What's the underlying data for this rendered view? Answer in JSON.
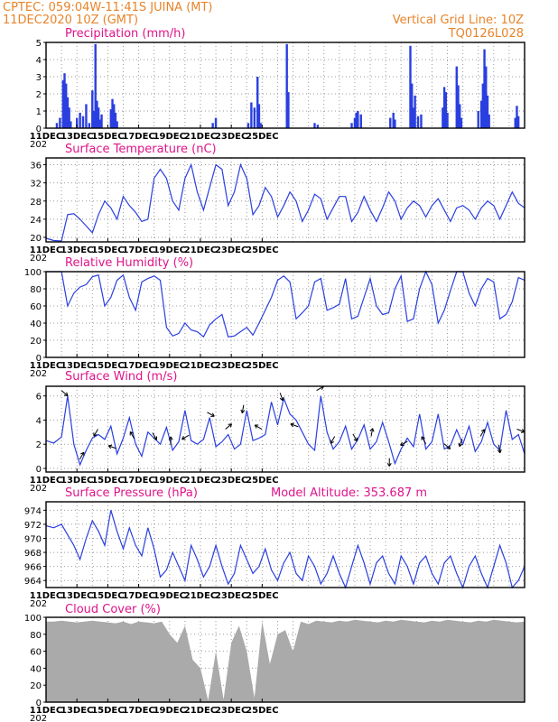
{
  "header": {
    "line1": "CPTEC:   059:04W-11:41S   JUINA (MT)",
    "line2": "11DEC2020 10Z (GMT)",
    "right1": "Vertical Grid Line: 10Z",
    "right2": "TQ0126L028"
  },
  "x_labels": [
    "11DEC",
    "13DEC",
    "15DEC",
    "17DEC",
    "19DEC",
    "21DEC",
    "23DEC",
    "25DEC"
  ],
  "year_stub": "202",
  "colors": {
    "curve": "#2a3fe0",
    "bar": "#2a3fe0",
    "cloud": "#aaaaaa",
    "header": "#e8842a",
    "title": "#e0148a"
  },
  "chart_data": [
    {
      "type": "bar",
      "title": "Precipitation (mm/h)",
      "ylim": [
        0,
        5
      ],
      "yticks": [
        0,
        1,
        2,
        3,
        4,
        5
      ],
      "bars": [
        [
          0.7,
          0.3
        ],
        [
          0.9,
          0.6
        ],
        [
          1.1,
          2.8
        ],
        [
          1.2,
          3.2
        ],
        [
          1.3,
          2.6
        ],
        [
          1.4,
          1.8
        ],
        [
          1.5,
          1.2
        ],
        [
          1.6,
          0.4
        ],
        [
          2.0,
          0.6
        ],
        [
          2.2,
          0.9
        ],
        [
          2.4,
          0.7
        ],
        [
          2.6,
          1.4
        ],
        [
          2.8,
          0.3
        ],
        [
          3.0,
          2.2
        ],
        [
          3.1,
          1.0
        ],
        [
          3.2,
          4.9
        ],
        [
          3.3,
          1.6
        ],
        [
          3.4,
          1.2
        ],
        [
          3.5,
          0.5
        ],
        [
          3.6,
          0.8
        ],
        [
          4.2,
          1.1
        ],
        [
          4.3,
          1.7
        ],
        [
          4.4,
          1.4
        ],
        [
          4.5,
          0.9
        ],
        [
          4.6,
          0.4
        ],
        [
          10.8,
          0.3
        ],
        [
          11.0,
          0.6
        ],
        [
          13.1,
          0.3
        ],
        [
          13.3,
          1.5
        ],
        [
          13.5,
          1.2
        ],
        [
          13.7,
          3.0
        ],
        [
          13.8,
          1.4
        ],
        [
          13.9,
          0.3
        ],
        [
          15.6,
          4.9
        ],
        [
          15.7,
          2.1
        ],
        [
          17.4,
          0.3
        ],
        [
          17.6,
          0.2
        ],
        [
          19.8,
          0.3
        ],
        [
          20.0,
          0.6
        ],
        [
          20.1,
          0.9
        ],
        [
          20.2,
          1.0
        ],
        [
          20.4,
          0.8
        ],
        [
          22.3,
          0.6
        ],
        [
          22.5,
          0.9
        ],
        [
          22.6,
          0.5
        ],
        [
          23.6,
          4.8
        ],
        [
          23.7,
          2.6
        ],
        [
          23.8,
          1.2
        ],
        [
          23.9,
          1.9
        ],
        [
          24.1,
          0.7
        ],
        [
          24.3,
          0.8
        ],
        [
          25.7,
          1.2
        ],
        [
          25.8,
          2.4
        ],
        [
          25.9,
          2.1
        ],
        [
          26.0,
          0.9
        ],
        [
          26.6,
          3.6
        ],
        [
          26.7,
          2.5
        ],
        [
          26.8,
          1.4
        ],
        [
          26.9,
          0.6
        ],
        [
          28.0,
          1.0
        ],
        [
          28.2,
          1.6
        ],
        [
          28.3,
          2.6
        ],
        [
          28.4,
          4.6
        ],
        [
          28.5,
          3.6
        ],
        [
          28.6,
          1.9
        ],
        [
          28.7,
          0.8
        ],
        [
          30.4,
          0.6
        ],
        [
          30.5,
          1.3
        ],
        [
          30.6,
          0.7
        ]
      ]
    },
    {
      "type": "line",
      "title": "Surface Temperature (nC)",
      "ylim": [
        19,
        37.5
      ],
      "yticks": [
        20,
        24,
        28,
        32,
        36
      ],
      "x": [
        0.0,
        0.5,
        1.0,
        1.4,
        1.8,
        2.2,
        2.6,
        3.0,
        3.4,
        3.8,
        4.2,
        4.6,
        5.0,
        5.4,
        5.8,
        6.2,
        6.6,
        7.0,
        7.4,
        7.8,
        8.2,
        8.6,
        9.0,
        9.4,
        9.8,
        10.2,
        10.6,
        11.0,
        11.4,
        11.8,
        12.2,
        12.6,
        13.0,
        13.4,
        13.8,
        14.2,
        14.6,
        15.0,
        15.4,
        15.8,
        16.2,
        16.6,
        17.0,
        17.4,
        17.8,
        18.2,
        18.6,
        19.0,
        19.4,
        19.8,
        20.2,
        20.6,
        21.0,
        21.4,
        21.8,
        22.2,
        22.6,
        23.0,
        23.4,
        23.8,
        24.2,
        24.6,
        25.0,
        25.4,
        25.8,
        26.2,
        26.6,
        27.0,
        27.4,
        27.8,
        28.2,
        28.6,
        29.0,
        29.4,
        29.8,
        30.2,
        30.6,
        31.0
      ],
      "y": [
        19.8,
        19.3,
        19.2,
        25.0,
        25.2,
        24.0,
        22.5,
        21.0,
        25.0,
        28.0,
        26.5,
        24.0,
        29.0,
        27.0,
        25.5,
        23.5,
        24.0,
        33.0,
        35.0,
        33.0,
        28.0,
        26.0,
        33.0,
        36.0,
        30.0,
        26.0,
        31.0,
        36.0,
        35.0,
        27.0,
        30.0,
        36.0,
        33.0,
        25.0,
        27.0,
        31.0,
        29.0,
        24.5,
        27.0,
        30.0,
        28.0,
        23.5,
        26.0,
        29.5,
        28.5,
        24.0,
        26.5,
        29.0,
        29.0,
        23.5,
        25.5,
        29.0,
        26.0,
        23.5,
        26.5,
        30.0,
        28.0,
        24.0,
        26.5,
        28.0,
        27.0,
        24.5,
        27.0,
        28.5,
        26.0,
        23.5,
        26.5,
        27.0,
        26.0,
        24.0,
        26.5,
        28.0,
        27.0,
        24.0,
        27.0,
        30.0,
        27.5,
        26.5
      ]
    },
    {
      "type": "line",
      "title": "Relative Humidity (%)",
      "ylim": [
        0,
        100
      ],
      "yticks": [
        0,
        20,
        40,
        60,
        80,
        100
      ],
      "x": [
        0.0,
        0.5,
        1.0,
        1.4,
        1.8,
        2.2,
        2.6,
        3.0,
        3.4,
        3.8,
        4.2,
        4.6,
        5.0,
        5.4,
        5.8,
        6.2,
        6.6,
        7.0,
        7.4,
        7.8,
        8.2,
        8.6,
        9.0,
        9.4,
        9.8,
        10.2,
        10.6,
        11.0,
        11.4,
        11.8,
        12.2,
        12.6,
        13.0,
        13.4,
        13.8,
        14.2,
        14.6,
        15.0,
        15.4,
        15.8,
        16.2,
        16.6,
        17.0,
        17.4,
        17.8,
        18.2,
        18.6,
        19.0,
        19.4,
        19.8,
        20.2,
        20.6,
        21.0,
        21.4,
        21.8,
        22.2,
        22.6,
        23.0,
        23.4,
        23.8,
        24.2,
        24.6,
        25.0,
        25.4,
        25.8,
        26.2,
        26.6,
        27.0,
        27.4,
        27.8,
        28.2,
        28.6,
        29.0,
        29.4,
        29.8,
        30.2,
        30.6,
        31.0
      ],
      "y": [
        100,
        100,
        100,
        60,
        75,
        82,
        85,
        94,
        96,
        60,
        70,
        90,
        96,
        70,
        55,
        88,
        92,
        95,
        90,
        35,
        25,
        28,
        40,
        32,
        30,
        24,
        38,
        45,
        50,
        24,
        25,
        30,
        35,
        26,
        40,
        55,
        70,
        90,
        95,
        88,
        45,
        52,
        60,
        88,
        92,
        55,
        58,
        62,
        92,
        45,
        48,
        70,
        92,
        60,
        50,
        52,
        80,
        95,
        42,
        45,
        80,
        100,
        85,
        40,
        55,
        78,
        100,
        100,
        75,
        60,
        80,
        92,
        88,
        45,
        50,
        65,
        93,
        90
      ]
    },
    {
      "type": "line",
      "title": "Surface Wind (m/s)",
      "ylim": [
        -0.3,
        6.8
      ],
      "yticks": [
        0,
        2,
        4,
        6
      ],
      "x": [
        0.0,
        0.5,
        1.0,
        1.4,
        1.8,
        2.2,
        2.6,
        3.0,
        3.4,
        3.8,
        4.2,
        4.6,
        5.0,
        5.4,
        5.8,
        6.2,
        6.6,
        7.0,
        7.4,
        7.8,
        8.2,
        8.6,
        9.0,
        9.4,
        9.8,
        10.2,
        10.6,
        11.0,
        11.4,
        11.8,
        12.2,
        12.6,
        13.0,
        13.4,
        13.8,
        14.2,
        14.6,
        15.0,
        15.4,
        15.8,
        16.2,
        16.6,
        17.0,
        17.4,
        17.8,
        18.2,
        18.6,
        19.0,
        19.4,
        19.8,
        20.2,
        20.6,
        21.0,
        21.4,
        21.8,
        22.2,
        22.6,
        23.0,
        23.4,
        23.8,
        24.2,
        24.6,
        25.0,
        25.4,
        25.8,
        26.2,
        26.6,
        27.0,
        27.4,
        27.8,
        28.2,
        28.6,
        29.0,
        29.4,
        29.8,
        30.2,
        30.6,
        31.0
      ],
      "y": [
        2.3,
        2.1,
        2.6,
        6.0,
        2.0,
        0.3,
        1.5,
        2.5,
        2.8,
        2.4,
        3.5,
        1.2,
        2.5,
        4.2,
        2.0,
        1.0,
        3.0,
        2.5,
        2.0,
        3.4,
        1.5,
        2.2,
        4.8,
        2.3,
        2.0,
        2.4,
        4.2,
        1.8,
        2.2,
        2.8,
        1.6,
        2.0,
        4.8,
        2.3,
        2.5,
        2.8,
        5.5,
        3.6,
        5.8,
        4.5,
        4.0,
        3.0,
        2.0,
        1.5,
        6.0,
        3.0,
        1.6,
        2.2,
        3.5,
        1.6,
        2.4,
        3.6,
        1.6,
        2.2,
        3.8,
        2.2,
        0.4,
        1.6,
        2.5,
        1.8,
        4.5,
        1.6,
        2.2,
        4.5,
        1.6,
        1.9,
        3.2,
        2.0,
        3.5,
        1.4,
        2.2,
        3.8,
        2.0,
        1.5,
        4.8,
        2.4,
        2.8,
        1.2
      ]
    },
    {
      "type": "line",
      "title": "Surface Pressure (hPa)",
      "annotation": "Model Altitude: 353.687  m",
      "ylim": [
        963.0,
        975.2
      ],
      "yticks": [
        964,
        966,
        968,
        970,
        972,
        974
      ],
      "x": [
        0.0,
        0.5,
        1.0,
        1.4,
        1.8,
        2.2,
        2.6,
        3.0,
        3.4,
        3.8,
        4.2,
        4.6,
        5.0,
        5.4,
        5.8,
        6.2,
        6.6,
        7.0,
        7.4,
        7.8,
        8.2,
        8.6,
        9.0,
        9.4,
        9.8,
        10.2,
        10.6,
        11.0,
        11.4,
        11.8,
        12.2,
        12.6,
        13.0,
        13.4,
        13.8,
        14.2,
        14.6,
        15.0,
        15.4,
        15.8,
        16.2,
        16.6,
        17.0,
        17.4,
        17.8,
        18.2,
        18.6,
        19.0,
        19.4,
        19.8,
        20.2,
        20.6,
        21.0,
        21.4,
        21.8,
        22.2,
        22.6,
        23.0,
        23.4,
        23.8,
        24.2,
        24.6,
        25.0,
        25.4,
        25.8,
        26.2,
        26.6,
        27.0,
        27.4,
        27.8,
        28.2,
        28.6,
        29.0,
        29.4,
        29.8,
        30.2,
        30.6,
        31.0
      ],
      "y": [
        971.8,
        971.5,
        972.0,
        970.5,
        969.0,
        967.0,
        970.0,
        972.5,
        971.0,
        969.0,
        974.0,
        971.0,
        968.5,
        971.5,
        969.0,
        967.5,
        971.5,
        968.5,
        964.5,
        965.5,
        968.0,
        966.0,
        964.0,
        969.0,
        967.0,
        964.5,
        966.0,
        969.0,
        966.0,
        963.5,
        965.0,
        969.0,
        967.0,
        965.0,
        966.0,
        968.5,
        965.5,
        964.0,
        966.5,
        968.0,
        965.0,
        964.0,
        967.5,
        966.0,
        963.5,
        965.0,
        967.5,
        965.0,
        963.0,
        966.0,
        969.0,
        966.5,
        963.5,
        966.5,
        967.5,
        965.0,
        963.5,
        967.5,
        966.0,
        963.5,
        966.5,
        967.5,
        965.0,
        963.5,
        966.5,
        967.5,
        965.0,
        963.0,
        966.0,
        967.5,
        965.0,
        963.0,
        966.0,
        969.0,
        966.5,
        963.0,
        964.0,
        966.0
      ]
    },
    {
      "type": "area",
      "title": "Cloud Cover (%)",
      "ylim": [
        0,
        100
      ],
      "yticks": [
        0,
        20,
        40,
        60,
        80,
        100
      ],
      "x": [
        0.0,
        0.5,
        1.0,
        1.5,
        2.0,
        2.5,
        3.0,
        3.5,
        4.0,
        4.5,
        5.0,
        5.5,
        6.0,
        6.5,
        7.0,
        7.5,
        8.0,
        8.5,
        9.0,
        9.5,
        10.0,
        10.5,
        11.0,
        11.5,
        12.0,
        12.5,
        13.0,
        13.5,
        14.0,
        14.5,
        15.0,
        15.5,
        16.0,
        16.5,
        17.0,
        17.5,
        18.0,
        18.5,
        19.0,
        19.5,
        20.0,
        20.5,
        21.0,
        21.5,
        22.0,
        22.5,
        23.0,
        23.5,
        24.0,
        24.5,
        25.0,
        25.5,
        26.0,
        26.5,
        27.0,
        27.5,
        28.0,
        28.5,
        29.0,
        29.5,
        30.0,
        30.5,
        31.0
      ],
      "y": [
        95,
        95,
        96,
        95,
        94,
        95,
        96,
        95,
        94,
        93,
        95,
        92,
        95,
        94,
        93,
        95,
        80,
        70,
        90,
        50,
        40,
        2,
        60,
        3,
        70,
        90,
        60,
        5,
        95,
        45,
        80,
        85,
        60,
        95,
        92,
        96,
        95,
        94,
        96,
        95,
        97,
        96,
        95,
        94,
        96,
        95,
        97,
        96,
        95,
        94,
        96,
        95,
        97,
        96,
        95,
        94,
        96,
        95,
        97,
        96,
        95,
        94,
        95
      ]
    }
  ]
}
